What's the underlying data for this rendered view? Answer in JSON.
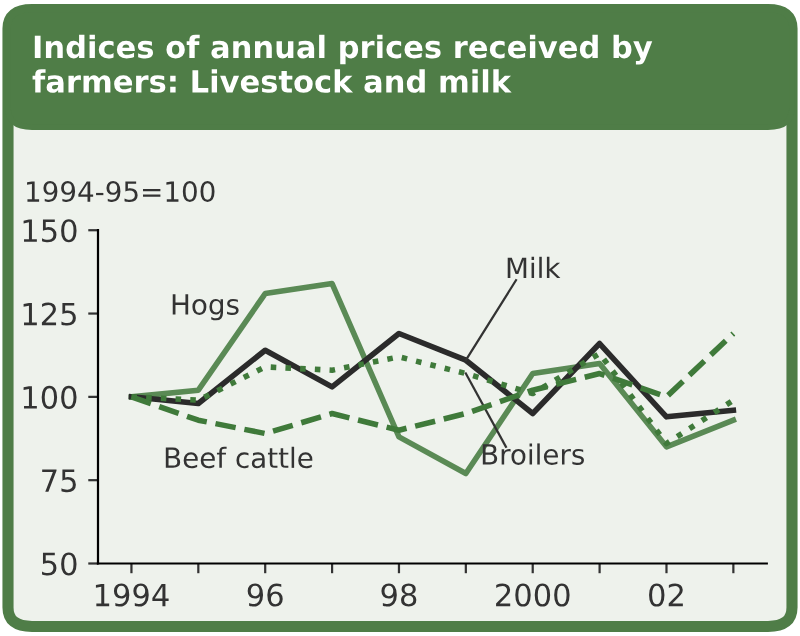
{
  "chart_data": {
    "type": "line",
    "title": "Indices of annual prices received by farmers: Livestock and milk",
    "ylabel": "1994-95=100",
    "x": [
      1994,
      1995,
      1996,
      1997,
      1998,
      1999,
      2000,
      2001,
      2002,
      2003
    ],
    "series": [
      {
        "name": "Hogs",
        "color": "#5a8a55",
        "line_style": "solid",
        "values": [
          100,
          102,
          131,
          134,
          88,
          77,
          107,
          110,
          85,
          93
        ]
      },
      {
        "name": "Milk",
        "color": "#2b2b2b",
        "line_style": "solid",
        "values": [
          100,
          98,
          114,
          103,
          119,
          111,
          95,
          116,
          94,
          96
        ]
      },
      {
        "name": "Broilers",
        "color": "#3f7a3a",
        "line_style": "dotted",
        "values": [
          100,
          99,
          109,
          108,
          112,
          107,
          101,
          113,
          86,
          99
        ]
      },
      {
        "name": "Beef cattle",
        "color": "#3f7a3a",
        "line_style": "dashed",
        "values": [
          100,
          93,
          89,
          95,
          90,
          95,
          102,
          107,
          100,
          119
        ]
      }
    ],
    "xlim": [
      1993.5,
      2003.5
    ],
    "xticks": [
      {
        "value": 1994,
        "label": "1994"
      },
      {
        "value": 1995,
        "label": null
      },
      {
        "value": 1996,
        "label": "96"
      },
      {
        "value": 1997,
        "label": null
      },
      {
        "value": 1998,
        "label": "98"
      },
      {
        "value": 1999,
        "label": null
      },
      {
        "value": 2000,
        "label": "2000"
      },
      {
        "value": 2001,
        "label": null
      },
      {
        "value": 2002,
        "label": "02"
      },
      {
        "value": 2003,
        "label": null
      }
    ],
    "ylim": [
      50,
      150
    ],
    "yticks": [
      50,
      75,
      100,
      125,
      150
    ],
    "grid": false,
    "legend": false,
    "marker": "none"
  }
}
